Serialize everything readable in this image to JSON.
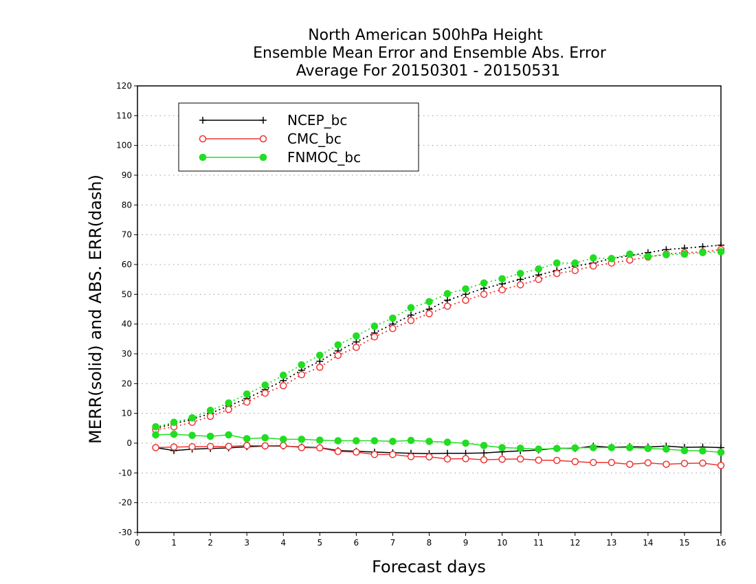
{
  "chart_data": {
    "type": "line",
    "title_lines": [
      "North American 500hPa Height",
      "Ensemble Mean Error and Ensemble Abs. Error",
      "Average For 20150301 - 20150531"
    ],
    "xlabel": "Forecast days",
    "ylabel": "MERR(solid) and ABS. ERR(dash)",
    "xlim": [
      0,
      16
    ],
    "ylim": [
      -30,
      120
    ],
    "xticks": [
      0,
      1,
      2,
      3,
      4,
      5,
      6,
      7,
      8,
      9,
      10,
      11,
      12,
      13,
      14,
      15,
      16
    ],
    "yticks": [
      -30,
      -20,
      -10,
      0,
      10,
      20,
      30,
      40,
      50,
      60,
      70,
      80,
      90,
      100,
      110,
      120
    ],
    "grid": true,
    "legend_position": "top-left",
    "x": [
      0.5,
      1.0,
      1.5,
      2.0,
      2.5,
      3.0,
      3.5,
      4.0,
      4.5,
      5.0,
      5.5,
      6.0,
      6.5,
      7.0,
      7.5,
      8.0,
      8.5,
      9.0,
      9.5,
      10.0,
      10.5,
      11.0,
      11.5,
      12.0,
      12.5,
      13.0,
      13.5,
      14.0,
      14.5,
      15.0,
      15.5,
      16.0
    ],
    "series": [
      {
        "name": "NCEP_bc",
        "color": "#000000",
        "marker": "plus",
        "merr": [
          -1.5,
          -2.5,
          -2,
          -1.8,
          -1.6,
          -1.2,
          -1,
          -1,
          -1.3,
          -1.5,
          -2.5,
          -2.7,
          -3,
          -3.2,
          -3.4,
          -3.5,
          -3.4,
          -3.4,
          -3.3,
          -2.9,
          -2.6,
          -2.3,
          -1.7,
          -1.8,
          -1,
          -1.4,
          -1.2,
          -1.3,
          -1,
          -1.4,
          -1.3,
          -1.5
        ],
        "abs_err": [
          5,
          6.5,
          8,
          10,
          12.5,
          15,
          18,
          21,
          24.5,
          27.5,
          31,
          34,
          37,
          40,
          43,
          45,
          48,
          50,
          52,
          53.5,
          55,
          56.5,
          58,
          59.5,
          60.5,
          62,
          63,
          64,
          65,
          65.5,
          66,
          66.5
        ]
      },
      {
        "name": "CMC_bc",
        "color": "#ee3333",
        "marker": "open-circle",
        "merr": [
          -1.5,
          -1.3,
          -1.2,
          -1.1,
          -1.1,
          -0.8,
          -0.9,
          -0.8,
          -1.5,
          -1.6,
          -2.8,
          -3,
          -3.8,
          -3.8,
          -4.5,
          -4.6,
          -5.3,
          -5.2,
          -5.6,
          -5.4,
          -5.3,
          -5.7,
          -5.8,
          -6.2,
          -6.5,
          -6.5,
          -7.1,
          -6.6,
          -7.1,
          -6.8,
          -6.7,
          -7.5
        ],
        "abs_err": [
          4.5,
          5.5,
          7,
          9,
          11.3,
          13.8,
          16.8,
          19.3,
          23,
          25.5,
          29.5,
          32.2,
          35.7,
          38.5,
          41.2,
          43.5,
          46,
          48,
          50,
          51.5,
          53.2,
          55,
          57,
          58,
          59.5,
          60.5,
          61.5,
          62.5,
          63.5,
          64,
          64.2,
          65
        ]
      },
      {
        "name": "FNMOC_bc",
        "color": "#22dd22",
        "marker": "filled-circle",
        "merr": [
          2.8,
          3,
          2.6,
          2.3,
          2.8,
          1.5,
          1.8,
          1.3,
          1.3,
          1,
          0.8,
          0.8,
          0.8,
          0.6,
          0.9,
          0.6,
          0.3,
          0,
          -0.8,
          -1.5,
          -1.7,
          -2,
          -1.8,
          -1.6,
          -1.5,
          -1.5,
          -1.5,
          -1.8,
          -2,
          -2.5,
          -2.6,
          -3.1
        ],
        "abs_err": [
          5.5,
          7,
          8.5,
          11,
          13.5,
          16.5,
          19.5,
          22.8,
          26.3,
          29.5,
          33,
          36,
          39.3,
          42,
          45.5,
          47.5,
          50.2,
          51.8,
          53.8,
          55.2,
          57,
          58.5,
          60.5,
          60.5,
          62.2,
          62,
          63.5,
          62.7,
          63.3,
          63.5,
          64,
          64.3
        ]
      }
    ]
  }
}
